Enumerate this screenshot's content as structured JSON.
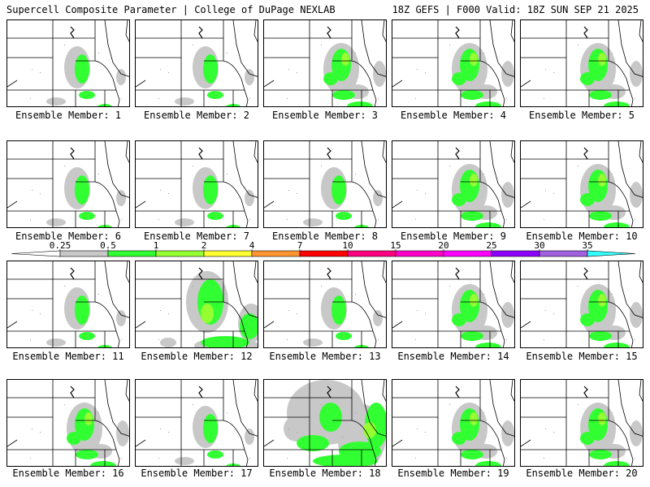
{
  "header": {
    "title": "Supercell Composite Parameter | College of DuPage NEXLAB",
    "run_info": "18Z GEFS | F000 Valid: 18Z SUN SEP 21 2025"
  },
  "ensemble": {
    "caption_prefix": "Ensemble Member: ",
    "members": [
      {
        "id": 1,
        "label": "Ensemble Member: 1",
        "coverage": "low"
      },
      {
        "id": 2,
        "label": "Ensemble Member: 2",
        "coverage": "low"
      },
      {
        "id": 3,
        "label": "Ensemble Member: 3",
        "coverage": "moderate"
      },
      {
        "id": 4,
        "label": "Ensemble Member: 4",
        "coverage": "moderate"
      },
      {
        "id": 5,
        "label": "Ensemble Member: 5",
        "coverage": "moderate"
      },
      {
        "id": 6,
        "label": "Ensemble Member: 6",
        "coverage": "low"
      },
      {
        "id": 7,
        "label": "Ensemble Member: 7",
        "coverage": "low"
      },
      {
        "id": 8,
        "label": "Ensemble Member: 8",
        "coverage": "low"
      },
      {
        "id": 9,
        "label": "Ensemble Member: 9",
        "coverage": "moderate"
      },
      {
        "id": 10,
        "label": "Ensemble Member: 10",
        "coverage": "moderate"
      },
      {
        "id": 11,
        "label": "Ensemble Member: 11",
        "coverage": "low"
      },
      {
        "id": 12,
        "label": "Ensemble Member: 12",
        "coverage": "high"
      },
      {
        "id": 13,
        "label": "Ensemble Member: 13",
        "coverage": "low"
      },
      {
        "id": 14,
        "label": "Ensemble Member: 14",
        "coverage": "moderate"
      },
      {
        "id": 15,
        "label": "Ensemble Member: 15",
        "coverage": "moderate"
      },
      {
        "id": 16,
        "label": "Ensemble Member: 16",
        "coverage": "moderate"
      },
      {
        "id": 17,
        "label": "Ensemble Member: 17",
        "coverage": "low"
      },
      {
        "id": 18,
        "label": "Ensemble Member: 18",
        "coverage": "very-high"
      },
      {
        "id": 19,
        "label": "Ensemble Member: 19",
        "coverage": "moderate"
      },
      {
        "id": 20,
        "label": "Ensemble Member: 20",
        "coverage": "moderate"
      }
    ]
  },
  "colorbar": {
    "ticks": [
      "0.25",
      "0.5",
      "1",
      "2",
      "4",
      "7",
      "10",
      "15",
      "20",
      "25",
      "30",
      "35"
    ],
    "bins": [
      {
        "from": "0.25",
        "to": "0.5",
        "color": "#c8c8c8"
      },
      {
        "from": "0.5",
        "to": "1",
        "color": "#32ff32"
      },
      {
        "from": "1",
        "to": "2",
        "color": "#96ff32"
      },
      {
        "from": "2",
        "to": "4",
        "color": "#ffff32"
      },
      {
        "from": "4",
        "to": "7",
        "color": "#ff9632"
      },
      {
        "from": "7",
        "to": "10",
        "color": "#ff0000"
      },
      {
        "from": "10",
        "to": "15",
        "color": "#ff0080"
      },
      {
        "from": "15",
        "to": "20",
        "color": "#ff00c8"
      },
      {
        "from": "20",
        "to": "25",
        "color": "#ff00ff"
      },
      {
        "from": "25",
        "to": "30",
        "color": "#8c00ff"
      },
      {
        "from": "30",
        "to": "35",
        "color": "#a060e0"
      },
      {
        "from": "35",
        "to": "",
        "color": "#32ffff"
      }
    ],
    "colors": {
      "trace": "#c8c8c8",
      "low": "#32ff32",
      "moderate": "#96ff32",
      "high": "#ffff32",
      "outline": "#000000"
    }
  }
}
